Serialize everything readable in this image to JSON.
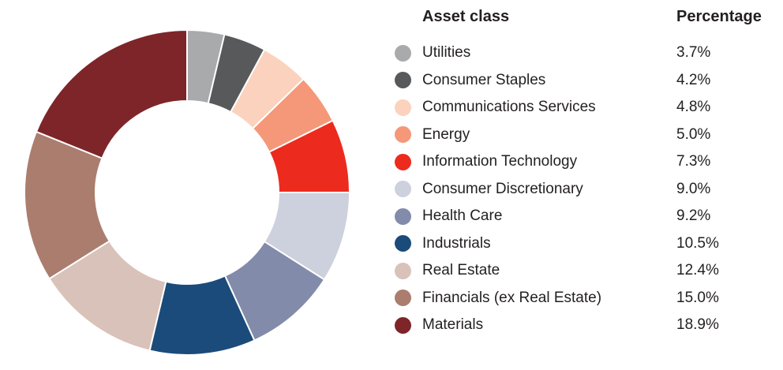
{
  "page": {
    "background_color": "#ffffff",
    "text_color": "#231f20"
  },
  "chart_data": {
    "type": "pie",
    "subtype": "donut",
    "title": "",
    "legend_position": "right",
    "start_angle_deg": 0,
    "direction": "clockwise",
    "legend_headers": [
      "Asset class",
      "Percentage"
    ],
    "categories": [
      "Utilities",
      "Consumer Staples",
      "Communications Services",
      "Energy",
      "Information Technology",
      "Consumer Discretionary",
      "Health Care",
      "Industrials",
      "Real Estate",
      "Financials (ex Real Estate)",
      "Materials"
    ],
    "values": [
      3.7,
      4.2,
      4.8,
      5.0,
      7.3,
      9.0,
      9.2,
      10.5,
      12.4,
      15.0,
      18.9
    ],
    "percent_labels": [
      "3.7%",
      "4.2%",
      "4.8%",
      "5.0%",
      "7.3%",
      "9.0%",
      "9.2%",
      "10.5%",
      "12.4%",
      "15.0%",
      "18.9%"
    ],
    "colors": [
      "#a8aaac",
      "#58595b",
      "#fbd2bd",
      "#f49879",
      "#ec2b1e",
      "#cdd0dd",
      "#838baa",
      "#1b4b7a",
      "#d9c2b9",
      "#aa7d6e",
      "#7e2529"
    ],
    "separator_color": "#ffffff"
  }
}
